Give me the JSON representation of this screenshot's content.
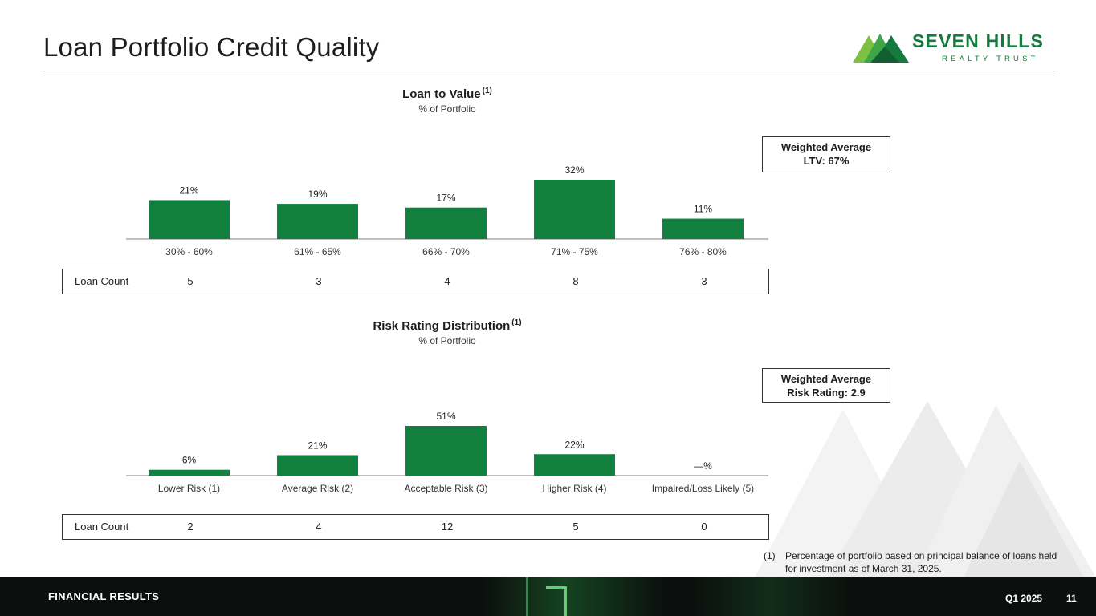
{
  "title": "Loan Portfolio Credit Quality",
  "logo": {
    "line1": "SEVEN HILLS",
    "line2": "REALTY TRUST"
  },
  "colors": {
    "bar": "#11803f",
    "brand": "#157a3e",
    "footer": "#0b0f0d"
  },
  "chart_data": [
    {
      "type": "bar",
      "title": "Loan to Value",
      "title_note": "(1)",
      "subtitle": "% of Portfolio",
      "categories": [
        "30% - 60%",
        "61% - 65%",
        "66% - 70%",
        "71% - 75%",
        "76% - 80%"
      ],
      "values": [
        21,
        19,
        17,
        32,
        11
      ],
      "labels": [
        "21%",
        "19%",
        "17%",
        "32%",
        "11%"
      ],
      "ylim": [
        0,
        32
      ],
      "grid": false,
      "weighted_average": {
        "line1": "Weighted Average",
        "line2": "LTV: 67%"
      },
      "loan_count": {
        "label": "Loan Count",
        "values": [
          "5",
          "3",
          "4",
          "8",
          "3"
        ]
      }
    },
    {
      "type": "bar",
      "title": "Risk Rating Distribution",
      "title_note": "(1)",
      "subtitle": "% of Portfolio",
      "categories": [
        "Lower Risk (1)",
        "Average Risk (2)",
        "Acceptable Risk (3)",
        "Higher Risk (4)",
        "Impaired/Loss Likely (5)"
      ],
      "values": [
        6,
        21,
        51,
        22,
        0
      ],
      "labels": [
        "6%",
        "21%",
        "51%",
        "22%",
        "—%"
      ],
      "ylim": [
        0,
        51
      ],
      "grid": false,
      "weighted_average": {
        "line1": "Weighted Average",
        "line2": "Risk Rating: 2.9"
      },
      "loan_count": {
        "label": "Loan Count",
        "values": [
          "2",
          "4",
          "12",
          "5",
          "0"
        ]
      }
    }
  ],
  "footnote": {
    "number": "(1)",
    "text": "Percentage of portfolio based on principal balance of loans held for investment as of March 31, 2025."
  },
  "footer": {
    "section": "FINANCIAL RESULTS",
    "period": "Q1 2025",
    "page": "11"
  }
}
